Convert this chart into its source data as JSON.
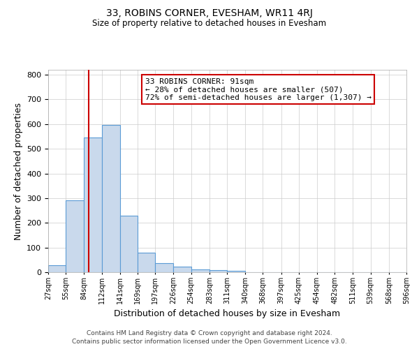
{
  "title": "33, ROBINS CORNER, EVESHAM, WR11 4RJ",
  "subtitle": "Size of property relative to detached houses in Evesham",
  "xlabel": "Distribution of detached houses by size in Evesham",
  "ylabel": "Number of detached properties",
  "bar_edges": [
    27,
    55,
    84,
    112,
    141,
    169,
    197,
    226,
    254,
    283,
    311,
    340,
    368,
    397,
    425,
    454,
    482,
    511,
    539,
    568,
    596
  ],
  "bar_heights": [
    28,
    291,
    547,
    596,
    228,
    78,
    37,
    24,
    10,
    8,
    7,
    0,
    0,
    0,
    0,
    0,
    0,
    0,
    0,
    0
  ],
  "bar_color": "#c9d9ec",
  "bar_edge_color": "#5b9bd5",
  "property_size": 91,
  "vline_color": "#cc0000",
  "annotation_line1": "33 ROBINS CORNER: 91sqm",
  "annotation_line2": "← 28% of detached houses are smaller (507)",
  "annotation_line3": "72% of semi-detached houses are larger (1,307) →",
  "annotation_box_color": "#ffffff",
  "annotation_box_edge_color": "#cc0000",
  "ylim": [
    0,
    820
  ],
  "yticks": [
    0,
    100,
    200,
    300,
    400,
    500,
    600,
    700,
    800
  ],
  "tick_labels": [
    "27sqm",
    "55sqm",
    "84sqm",
    "112sqm",
    "141sqm",
    "169sqm",
    "197sqm",
    "226sqm",
    "254sqm",
    "283sqm",
    "311sqm",
    "340sqm",
    "368sqm",
    "397sqm",
    "425sqm",
    "454sqm",
    "482sqm",
    "511sqm",
    "539sqm",
    "568sqm",
    "596sqm"
  ],
  "footnote1": "Contains HM Land Registry data © Crown copyright and database right 2024.",
  "footnote2": "Contains public sector information licensed under the Open Government Licence v3.0.",
  "background_color": "#ffffff",
  "grid_color": "#cccccc"
}
